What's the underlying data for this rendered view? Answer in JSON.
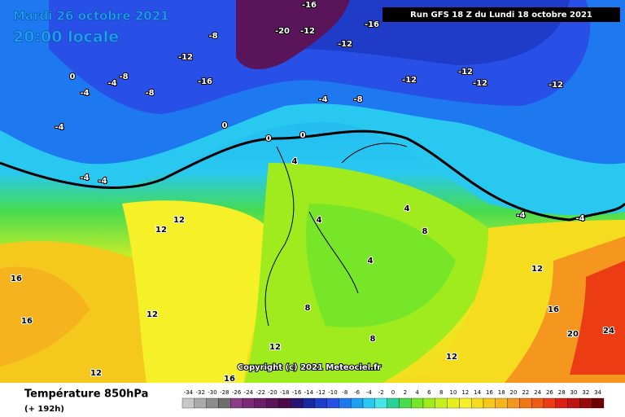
{
  "header": {
    "date": "Mardi 26 octobre 2021",
    "time": "20:00 locale",
    "run": "Run GFS 18 Z du Lundi 18 octobre 2021"
  },
  "footer": {
    "title": "Température 850hPa",
    "lead": "(+ 192h)",
    "copyright": "Copyright (c) 2021 Meteociel.fr"
  },
  "legend": {
    "values": [
      -34,
      -32,
      -30,
      -28,
      -26,
      -24,
      -22,
      -20,
      -18,
      -16,
      -14,
      -12,
      -10,
      -8,
      -6,
      -4,
      -2,
      0,
      2,
      4,
      6,
      8,
      10,
      12,
      14,
      16,
      18,
      20,
      22,
      24,
      26,
      28,
      30,
      32,
      34
    ],
    "colors": [
      "#c8c8c8",
      "#aaaaaa",
      "#8c8c8c",
      "#6e6e6e",
      "#8a3c8a",
      "#7a2878",
      "#6a1e6a",
      "#5a145a",
      "#4a0a4a",
      "#2a1470",
      "#1a28a0",
      "#1e3cc8",
      "#2850e6",
      "#1e78f0",
      "#1ea0f0",
      "#28c8f0",
      "#46e6e6",
      "#28d296",
      "#46dc50",
      "#78e628",
      "#a0eb1e",
      "#c8f01e",
      "#e6f01e",
      "#f5f028",
      "#f5dc1e",
      "#f5c81e",
      "#f5b41e",
      "#f5961e",
      "#f07814",
      "#f05a14",
      "#eb3c14",
      "#dc1e14",
      "#be1414",
      "#960a0a",
      "#6e0000"
    ]
  },
  "contours": [
    -16,
    -20,
    -12,
    -16,
    -12,
    -12,
    -12,
    -12,
    -12,
    -8,
    -8,
    -8,
    -12,
    -16,
    -4,
    -4,
    -4,
    -4,
    -4,
    0,
    0,
    0,
    0,
    -4,
    -8,
    -4,
    -4,
    4,
    4,
    4,
    12,
    12,
    16,
    16,
    12,
    8,
    8,
    4,
    12,
    16,
    20,
    24,
    12,
    8,
    12,
    16,
    12
  ]
}
